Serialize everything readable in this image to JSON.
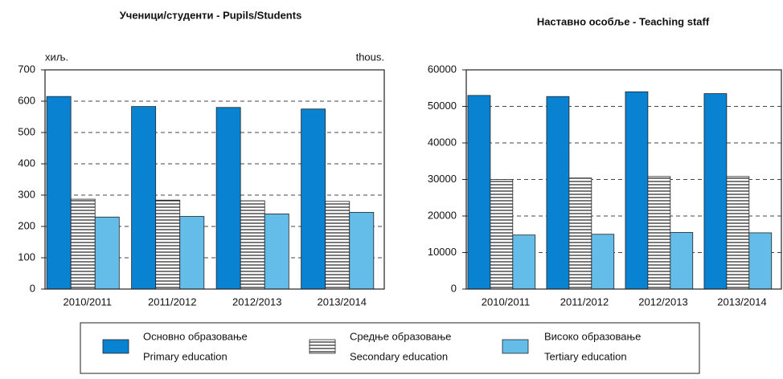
{
  "chart_data": [
    {
      "type": "bar",
      "title": "Ученици/студенти  -  Pupils/Students",
      "unit_left": "хиљ.",
      "unit_right": "thous.",
      "categories": [
        "2010/2011",
        "2011/2012",
        "2012/2013",
        "2013/2014"
      ],
      "series": [
        {
          "name": [
            "Основно образовање",
            "Primary education"
          ],
          "color": "#0a82d2",
          "values": [
            615,
            583,
            580,
            575
          ]
        },
        {
          "name": [
            "Средње образовање",
            "Secondary education"
          ],
          "color": "#ffffff",
          "pattern": "horizontal-lines",
          "values": [
            287,
            284,
            282,
            280
          ]
        },
        {
          "name": [
            "Високо образовање",
            "Tertiary education"
          ],
          "color": "#63bde8",
          "values": [
            230,
            232,
            240,
            245
          ]
        }
      ],
      "ylim": [
        0,
        700
      ],
      "yticks": [
        0,
        100,
        200,
        300,
        400,
        500,
        600,
        700
      ],
      "grid": true
    },
    {
      "type": "bar",
      "title": "Наставно особље  -  Teaching staff",
      "categories": [
        "2010/2011",
        "2011/2012",
        "2012/2013",
        "2013/2014"
      ],
      "series": [
        {
          "color": "#0a82d2",
          "values": [
            53000,
            52700,
            54000,
            53500
          ]
        },
        {
          "color": "#ffffff",
          "pattern": "horizontal-lines",
          "values": [
            30000,
            30400,
            30800,
            30800
          ]
        },
        {
          "color": "#63bde8",
          "values": [
            14800,
            15000,
            15500,
            15400
          ]
        }
      ],
      "ylim": [
        0,
        60000
      ],
      "yticks": [
        0,
        10000,
        20000,
        30000,
        40000,
        50000,
        60000
      ],
      "grid": true
    }
  ]
}
